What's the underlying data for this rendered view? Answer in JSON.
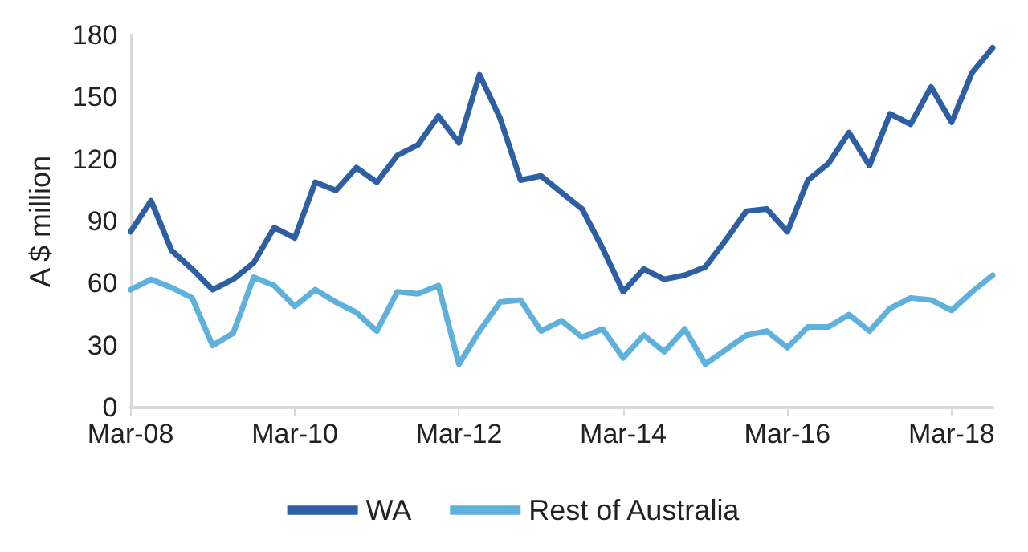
{
  "chart_data": {
    "type": "line",
    "ylabel": "A $ million",
    "categories": [
      "Mar-08",
      null,
      null,
      null,
      null,
      null,
      null,
      null,
      "Mar-10",
      null,
      null,
      null,
      null,
      null,
      null,
      null,
      "Mar-12",
      null,
      null,
      null,
      null,
      null,
      null,
      null,
      "Mar-14",
      null,
      null,
      null,
      null,
      null,
      null,
      null,
      "Mar-16",
      null,
      null,
      null,
      null,
      null,
      null,
      null,
      "Mar-18",
      null,
      null
    ],
    "series": [
      {
        "name": "WA",
        "color": "#2e5fa3",
        "values": [
          85,
          100,
          76,
          67,
          57,
          62,
          70,
          87,
          82,
          109,
          105,
          116,
          109,
          122,
          127,
          141,
          128,
          161,
          140,
          110,
          112,
          104,
          96,
          77,
          56,
          67,
          62,
          64,
          68,
          81,
          95,
          96,
          85,
          110,
          118,
          133,
          117,
          142,
          137,
          155,
          138,
          162,
          174
        ]
      },
      {
        "name": "Rest of Australia",
        "color": "#5fb0dc",
        "values": [
          57,
          62,
          58,
          53,
          30,
          36,
          63,
          59,
          49,
          57,
          51,
          46,
          37,
          56,
          55,
          59,
          21,
          37,
          51,
          52,
          37,
          42,
          34,
          38,
          24,
          35,
          27,
          38,
          21,
          28,
          35,
          37,
          29,
          39,
          39,
          45,
          37,
          48,
          53,
          52,
          47,
          56,
          64
        ]
      }
    ],
    "ylim": [
      0,
      180
    ],
    "yticks": [
      0,
      30,
      60,
      90,
      120,
      150,
      180
    ],
    "grid": false,
    "legend": "bottom",
    "marker": "none",
    "line_style": "solid"
  }
}
